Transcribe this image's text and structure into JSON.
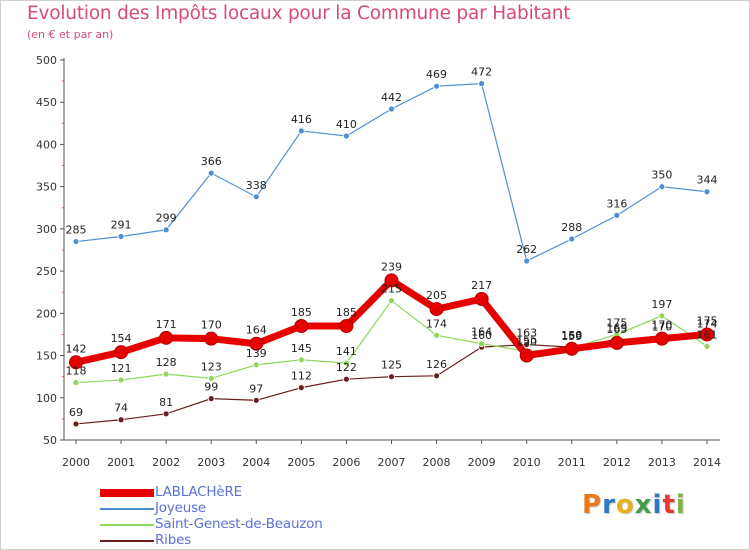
{
  "title": "Evolution des Impôts locaux pour la Commune par Habitant",
  "subtitle": "(en € et par an)",
  "logo": {
    "letters": [
      "P",
      "r",
      "o",
      "x",
      "i",
      "t",
      "i"
    ],
    "colors": [
      "#e87a1c",
      "#2f78c4",
      "#e8b01c",
      "#43a047",
      "#2f78c4",
      "#e53935",
      "#7cb342"
    ]
  },
  "chart_data": {
    "type": "line",
    "categories": [
      "2000",
      "2001",
      "2002",
      "2003",
      "2004",
      "2005",
      "2006",
      "2007",
      "2008",
      "2009",
      "2010",
      "2011",
      "2012",
      "2013",
      "2014"
    ],
    "y_ticks": [
      50,
      100,
      150,
      200,
      250,
      300,
      350,
      400,
      450,
      500
    ],
    "ylim": [
      50,
      500
    ],
    "grid": false,
    "legend_position": "bottom-left",
    "series": [
      {
        "name": "LABLACHèRE",
        "color": "#e60000",
        "values": [
          142,
          154,
          171,
          170,
          164,
          185,
          185,
          239,
          205,
          217,
          150,
          158,
          165,
          170,
          175
        ],
        "labels": [
          "142",
          "154",
          "171",
          "170",
          "164",
          "185",
          "185",
          "239",
          "205",
          "217",
          "150",
          "158",
          "165",
          "170",
          "175"
        ]
      },
      {
        "name": "Joyeuse",
        "color": "#4e8fd0",
        "values": [
          285,
          291,
          299,
          366,
          338,
          416,
          410,
          442,
          469,
          472,
          262,
          288,
          316,
          350,
          344
        ],
        "labels": [
          "285",
          "291",
          "299",
          "366",
          "338",
          "416",
          "410",
          "442",
          "469",
          "472",
          "262",
          "288",
          "316",
          "350",
          "344"
        ]
      },
      {
        "name": "Saint-Genest-de-Beauzon",
        "color": "#8fd65a",
        "values": [
          118,
          121,
          128,
          123,
          139,
          145,
          141,
          215,
          174,
          164,
          155,
          159,
          175,
          197,
          161
        ],
        "labels": [
          "118",
          "121",
          "128",
          "123",
          "139",
          "145",
          "141",
          "215",
          "174",
          "164",
          "155",
          "159",
          "175",
          "197",
          "161"
        ]
      },
      {
        "name": "Ribes",
        "color": "#6b1e1e",
        "values": [
          69,
          74,
          81,
          99,
          97,
          112,
          122,
          125,
          126,
          160,
          163,
          160,
          169,
          170,
          174
        ],
        "labels": [
          "69",
          "74",
          "81",
          "99",
          "97",
          "112",
          "122",
          "125",
          "126",
          "160",
          "163",
          "160",
          "169",
          "170",
          "174"
        ]
      }
    ]
  }
}
